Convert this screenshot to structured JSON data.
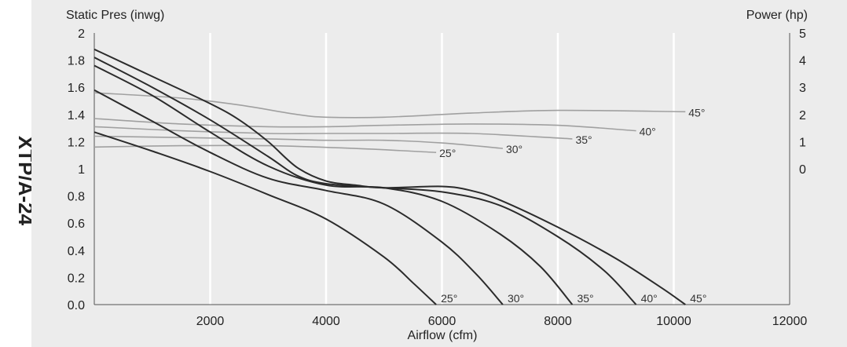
{
  "side_title": "XTP/A-24",
  "chart_data": {
    "type": "line",
    "xlabel": "Airflow (cfm)",
    "ylabel": "Static Pres (inwg)",
    "y2label": "Power (hp)",
    "xlim": [
      0,
      12000
    ],
    "ylim": [
      0,
      2
    ],
    "y2_ticks": [
      0,
      1,
      2,
      3,
      4,
      5
    ],
    "y2_ticks_at_y": [
      1.0,
      1.2,
      1.4,
      1.6,
      1.8,
      2.0
    ],
    "x_ticks": [
      2000,
      4000,
      6000,
      8000,
      10000,
      12000
    ],
    "x_tick_labels": [
      "2000",
      "4000",
      "6000",
      "8000",
      "10000",
      "12000"
    ],
    "y_ticks": [
      0,
      0.2,
      0.4,
      0.6,
      0.8,
      1,
      1.2,
      1.4,
      1.6,
      1.8,
      2
    ],
    "y_tick_labels": [
      "0.0",
      "0.2",
      "0.4",
      "0.6",
      "0.8",
      "1",
      "1.2",
      "1.4",
      "1.6",
      "1.8",
      "2"
    ],
    "grid": "vertical",
    "background": "#ececec",
    "pressure_series": [
      {
        "name": "25°",
        "x": [
          0,
          1000,
          2000,
          3000,
          4000,
          5000,
          5500,
          5900
        ],
        "y": [
          1.27,
          1.13,
          0.98,
          0.81,
          0.63,
          0.35,
          0.16,
          0.0
        ]
      },
      {
        "name": "30°",
        "x": [
          0,
          1000,
          2000,
          3000,
          4000,
          5000,
          6000,
          6600,
          7050
        ],
        "y": [
          1.58,
          1.35,
          1.12,
          0.93,
          0.84,
          0.74,
          0.46,
          0.22,
          0.0
        ]
      },
      {
        "name": "35°",
        "x": [
          0,
          1000,
          2000,
          3000,
          4000,
          5000,
          6000,
          7000,
          7700,
          8250
        ],
        "y": [
          1.76,
          1.54,
          1.27,
          1.02,
          0.88,
          0.86,
          0.76,
          0.52,
          0.28,
          0.0
        ]
      },
      {
        "name": "40°",
        "x": [
          0,
          1000,
          2000,
          3000,
          3500,
          4000,
          5000,
          6000,
          7000,
          8000,
          8800,
          9350
        ],
        "y": [
          1.82,
          1.6,
          1.36,
          1.09,
          0.95,
          0.89,
          0.86,
          0.83,
          0.73,
          0.5,
          0.25,
          0.0
        ]
      },
      {
        "name": "45°",
        "x": [
          0,
          1000,
          2000,
          2500,
          3000,
          3500,
          4000,
          4500,
          5000,
          6000,
          6500,
          7000,
          8000,
          9000,
          9800,
          10200
        ],
        "y": [
          1.88,
          1.68,
          1.48,
          1.36,
          1.2,
          1.01,
          0.91,
          0.88,
          0.86,
          0.87,
          0.84,
          0.77,
          0.57,
          0.34,
          0.12,
          0.0
        ]
      }
    ],
    "power_series": [
      {
        "name": "25°",
        "x": [
          0,
          1500,
          3000,
          4500,
          5900
        ],
        "y": [
          1.16,
          1.17,
          1.17,
          1.15,
          1.12
        ]
      },
      {
        "name": "30°",
        "x": [
          0,
          1500,
          3000,
          4000,
          5000,
          6000,
          7050
        ],
        "y": [
          1.24,
          1.23,
          1.22,
          1.21,
          1.21,
          1.19,
          1.15
        ]
      },
      {
        "name": "35°",
        "x": [
          0,
          1500,
          3000,
          4000,
          5000,
          6500,
          8250
        ],
        "y": [
          1.31,
          1.28,
          1.26,
          1.26,
          1.26,
          1.26,
          1.22
        ]
      },
      {
        "name": "40°",
        "x": [
          0,
          1500,
          3000,
          4000,
          5000,
          6500,
          8000,
          9350
        ],
        "y": [
          1.37,
          1.33,
          1.31,
          1.31,
          1.32,
          1.33,
          1.32,
          1.28
        ]
      },
      {
        "name": "45°",
        "x": [
          0,
          1500,
          2500,
          3500,
          4000,
          5000,
          6500,
          8000,
          10200
        ],
        "y": [
          1.56,
          1.52,
          1.47,
          1.4,
          1.38,
          1.38,
          1.41,
          1.43,
          1.42
        ]
      }
    ],
    "curve_labels": {
      "pressure": [
        "25°",
        "30°",
        "35°",
        "40°",
        "45°"
      ],
      "power": [
        "25°",
        "30°",
        "35°",
        "40°",
        "45°"
      ]
    },
    "colors": {
      "pressure": "#2b2b2b",
      "power": "#a0a0a0",
      "grid": "#ffffff",
      "frame": "#555555"
    }
  }
}
